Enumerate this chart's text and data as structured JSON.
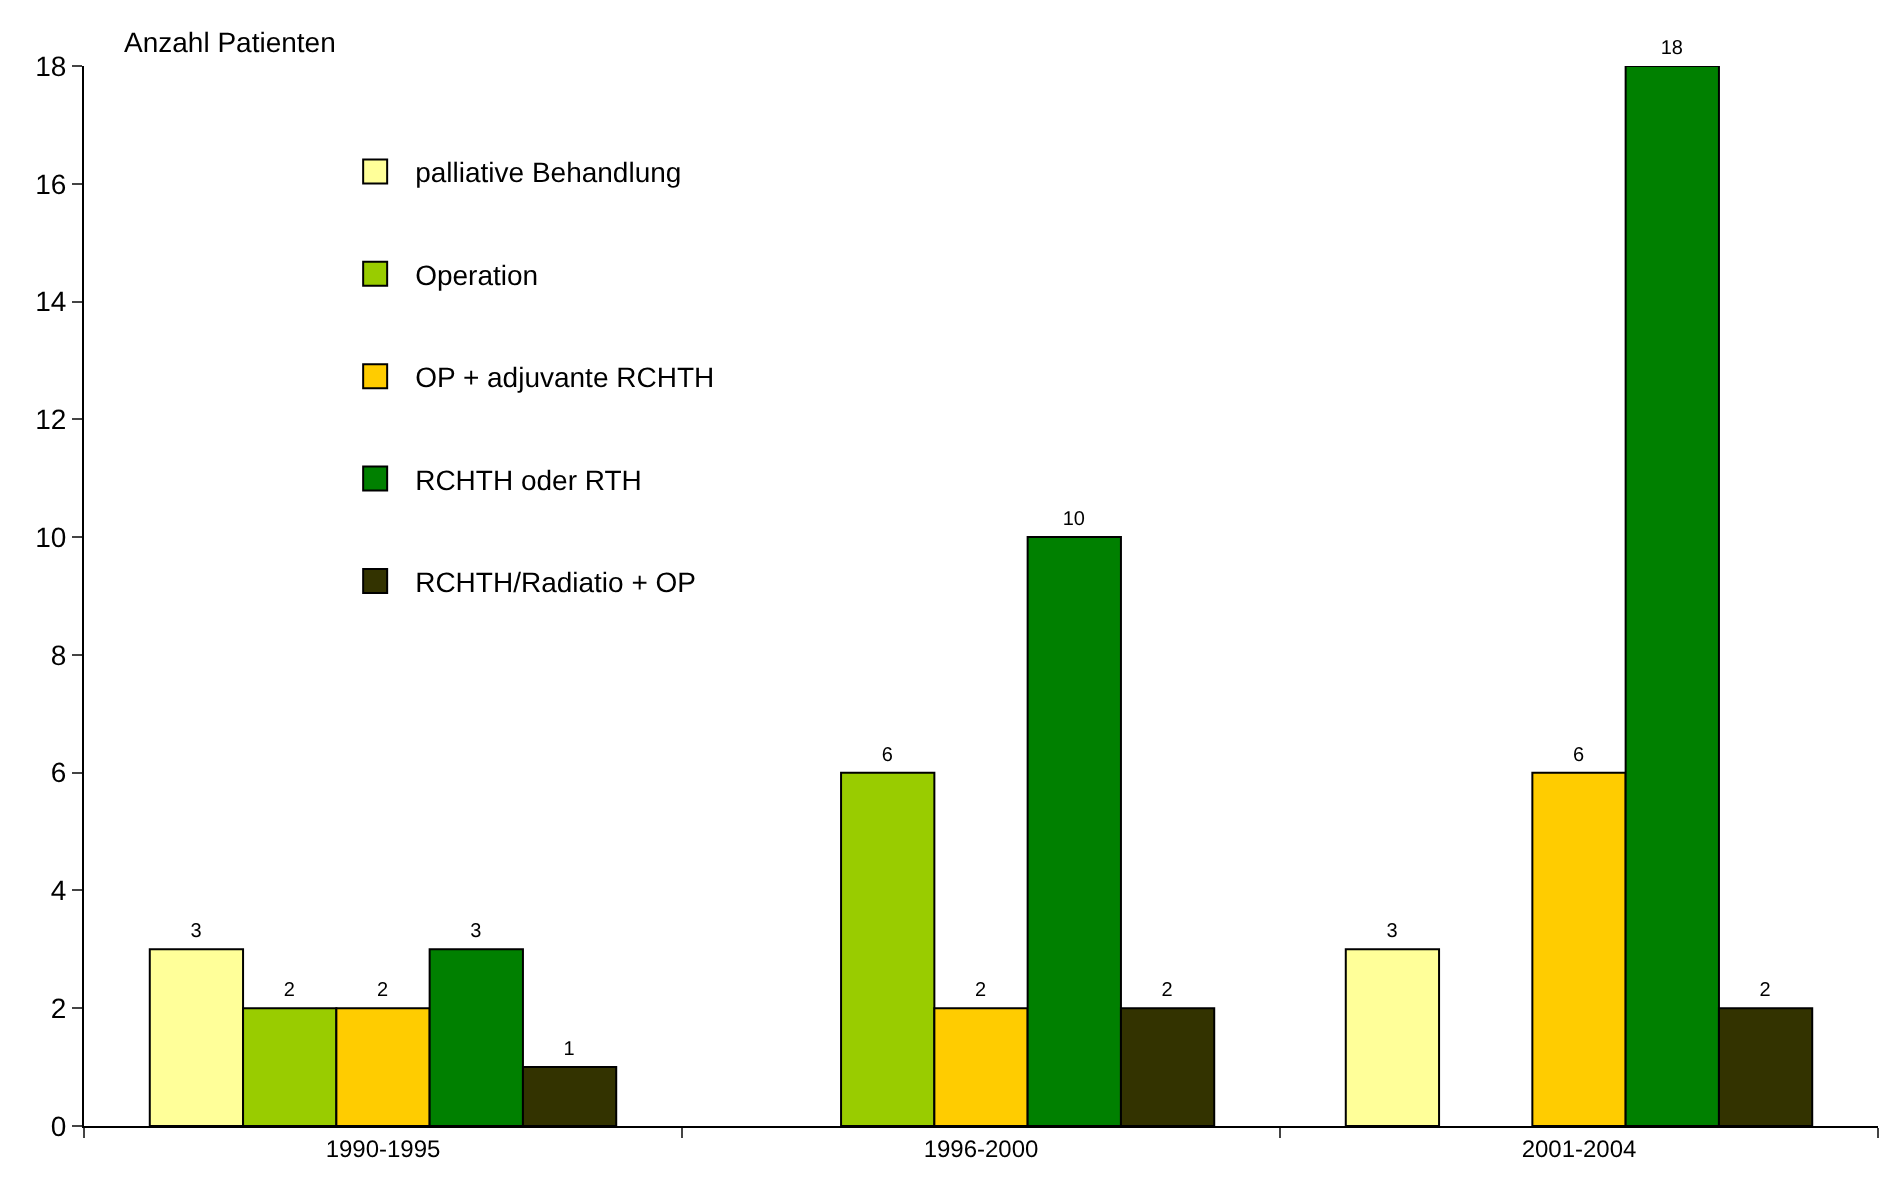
{
  "chart_data": {
    "type": "bar",
    "ylabel": "Anzahl Patienten",
    "categories": [
      "1990-1995",
      "1996-2000",
      "2001-2004"
    ],
    "series": [
      {
        "name": "palliative Behandlung",
        "color": "#ffff99",
        "values": [
          3,
          null,
          3
        ]
      },
      {
        "name": "Operation",
        "color": "#99cc00",
        "values": [
          2,
          6,
          null
        ]
      },
      {
        "name": "OP + adjuvante RCHTH",
        "color": "#ffcc00",
        "values": [
          2,
          2,
          6
        ]
      },
      {
        "name": "RCHTH oder RTH",
        "color": "#008000",
        "values": [
          3,
          10,
          18
        ]
      },
      {
        "name": "RCHTH/Radiatio + OP",
        "color": "#333300",
        "values": [
          1,
          2,
          2
        ]
      }
    ],
    "ylim": [
      0,
      18
    ],
    "yticks": [
      0,
      2,
      4,
      6,
      8,
      10,
      12,
      14,
      16,
      18
    ],
    "grid": false,
    "legend": "top left",
    "data_labels": true
  }
}
